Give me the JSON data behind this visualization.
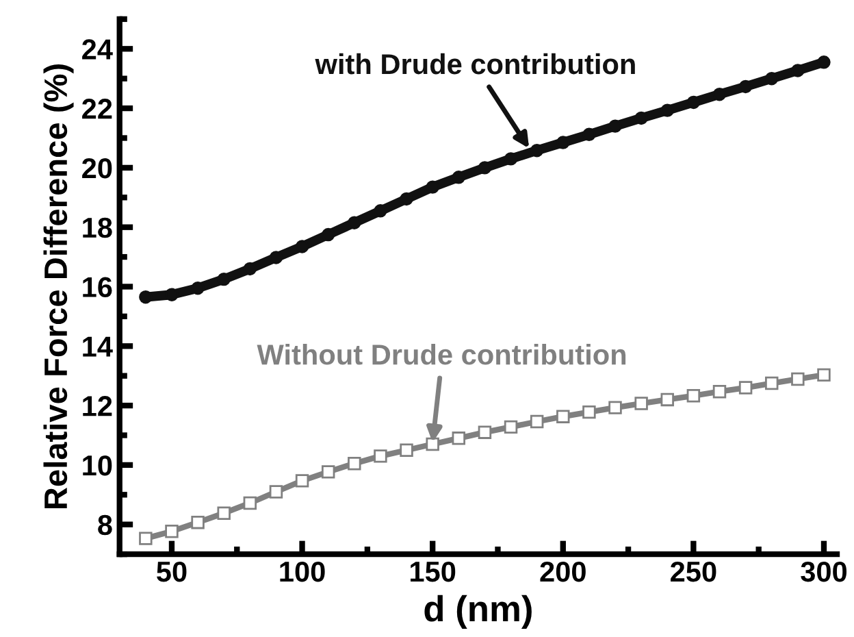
{
  "chart_data": {
    "type": "line",
    "xlabel": "d (nm)",
    "ylabel": "Relative Force Difference (%)",
    "xlim": [
      30,
      305
    ],
    "xticks": [
      50,
      100,
      150,
      200,
      250,
      300
    ],
    "ylim": [
      7,
      25
    ],
    "yticks": [
      8,
      10,
      12,
      14,
      16,
      18,
      20,
      22,
      24
    ],
    "grid": false,
    "legend": false,
    "x": [
      40,
      50,
      60,
      70,
      80,
      90,
      100,
      110,
      120,
      130,
      140,
      150,
      160,
      170,
      180,
      190,
      200,
      210,
      220,
      230,
      240,
      250,
      260,
      270,
      280,
      290,
      300
    ],
    "series": [
      {
        "color": "#111111",
        "marker": "circle",
        "values": [
          15.65,
          15.73,
          15.95,
          16.25,
          16.6,
          16.98,
          17.35,
          17.75,
          18.15,
          18.55,
          18.95,
          19.35,
          19.68,
          20.0,
          20.3,
          20.58,
          20.85,
          21.12,
          21.4,
          21.67,
          21.93,
          22.2,
          22.47,
          22.73,
          23.0,
          23.27,
          23.55
        ]
      },
      {
        "color": "#808080",
        "marker": "square",
        "values": [
          7.53,
          7.77,
          8.07,
          8.38,
          8.72,
          9.1,
          9.47,
          9.77,
          10.05,
          10.3,
          10.5,
          10.7,
          10.9,
          11.1,
          11.28,
          11.46,
          11.63,
          11.78,
          11.93,
          12.07,
          12.2,
          12.33,
          12.47,
          12.6,
          12.75,
          12.89,
          13.03
        ]
      }
    ],
    "annotations": [
      {
        "text": "with Drude contribution",
        "x": 187,
        "y": 20.65
      },
      {
        "text": "Without Drude contribution",
        "x": 150,
        "y": 10.75
      }
    ]
  }
}
